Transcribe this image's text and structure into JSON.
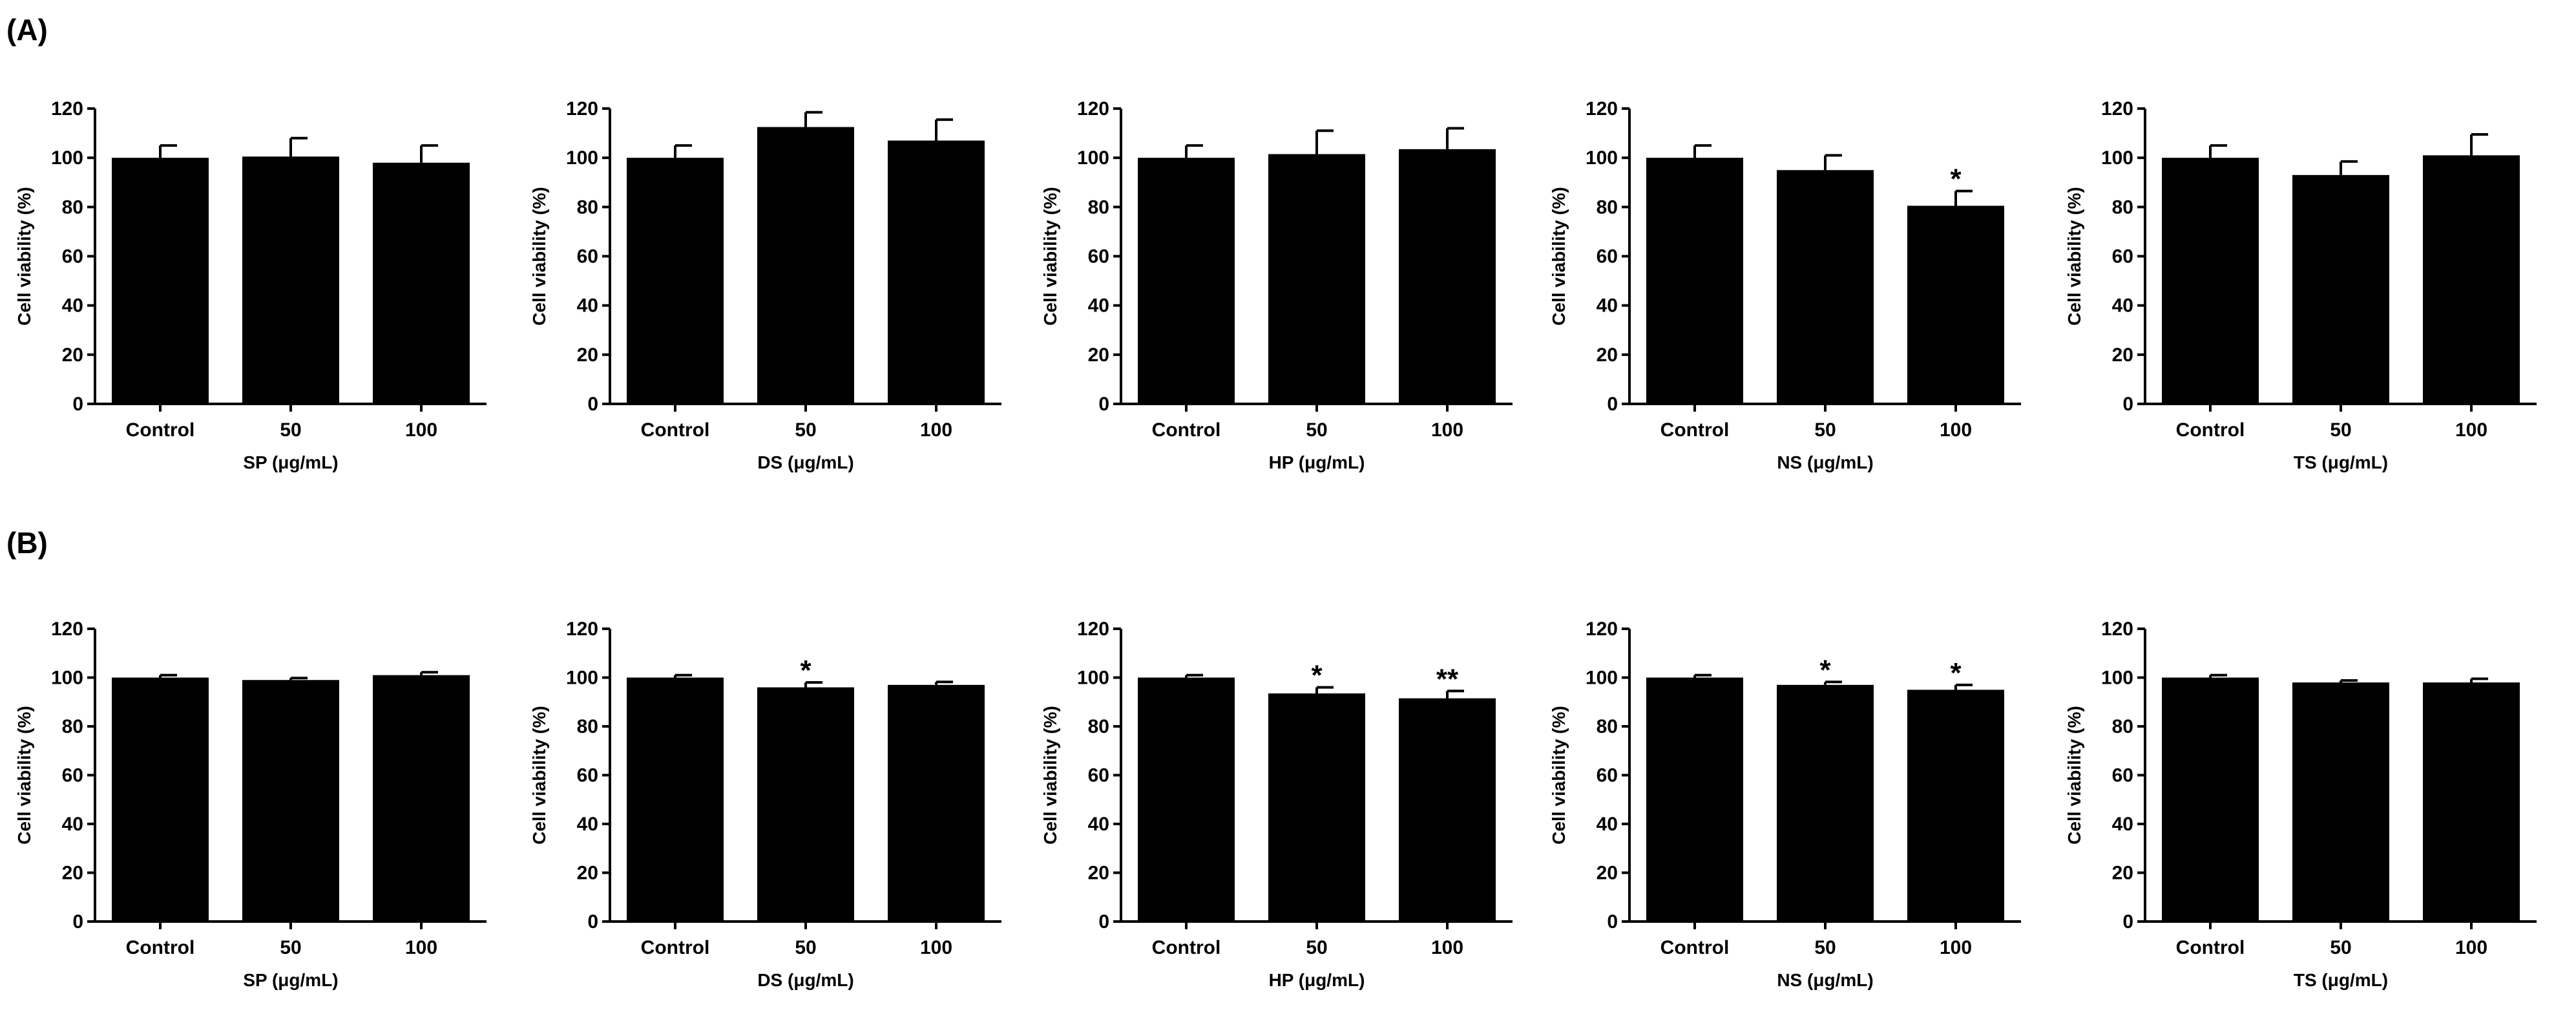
{
  "panel_labels": [
    "(A)",
    "(B)"
  ],
  "chart_data": [
    {
      "type": "bar",
      "panel": "(A)",
      "title": "",
      "xlabel": "SP (μg/mL)",
      "ylabel": "Cell viability (%)",
      "ylim": [
        0,
        120
      ],
      "yticks": [
        0,
        20,
        40,
        60,
        80,
        100,
        120
      ],
      "categories": [
        "Control",
        "50",
        "100"
      ],
      "values": [
        100,
        100.5,
        98
      ],
      "errors": [
        5,
        7.5,
        7
      ],
      "significance": [
        "",
        "",
        ""
      ],
      "color": "#000000"
    },
    {
      "type": "bar",
      "panel": "(A)",
      "title": "",
      "xlabel": "DS (μg/mL)",
      "ylabel": "Cell viability (%)",
      "ylim": [
        0,
        120
      ],
      "yticks": [
        0,
        20,
        40,
        60,
        80,
        100,
        120
      ],
      "categories": [
        "Control",
        "50",
        "100"
      ],
      "values": [
        100,
        112.5,
        107
      ],
      "errors": [
        5,
        6,
        8.5
      ],
      "significance": [
        "",
        "",
        ""
      ],
      "color": "#000000"
    },
    {
      "type": "bar",
      "panel": "(A)",
      "title": "",
      "xlabel": "HP (μg/mL)",
      "ylabel": "Cell viability (%)",
      "ylim": [
        0,
        120
      ],
      "yticks": [
        0,
        20,
        40,
        60,
        80,
        100,
        120
      ],
      "categories": [
        "Control",
        "50",
        "100"
      ],
      "values": [
        100,
        101.5,
        103.5
      ],
      "errors": [
        5,
        9.5,
        8.5
      ],
      "significance": [
        "",
        "",
        ""
      ],
      "color": "#000000"
    },
    {
      "type": "bar",
      "panel": "(A)",
      "title": "",
      "xlabel": "NS (μg/mL)",
      "ylabel": "Cell viability (%)",
      "ylim": [
        0,
        120
      ],
      "yticks": [
        0,
        20,
        40,
        60,
        80,
        100,
        120
      ],
      "categories": [
        "Control",
        "50",
        "100"
      ],
      "values": [
        100,
        95,
        80.5
      ],
      "errors": [
        5,
        6,
        6
      ],
      "significance": [
        "",
        "",
        "*"
      ],
      "color": "#000000"
    },
    {
      "type": "bar",
      "panel": "(A)",
      "title": "",
      "xlabel": "TS (μg/mL)",
      "ylabel": "Cell viability (%)",
      "ylim": [
        0,
        120
      ],
      "yticks": [
        0,
        20,
        40,
        60,
        80,
        100,
        120
      ],
      "categories": [
        "Control",
        "50",
        "100"
      ],
      "values": [
        100,
        93,
        101
      ],
      "errors": [
        5,
        5.5,
        8.5
      ],
      "significance": [
        "",
        "",
        ""
      ],
      "color": "#000000"
    },
    {
      "type": "bar",
      "panel": "(B)",
      "title": "",
      "xlabel": "SP (μg/mL)",
      "ylabel": "Cell viability (%)",
      "ylim": [
        0,
        120
      ],
      "yticks": [
        0,
        20,
        40,
        60,
        80,
        100,
        120
      ],
      "categories": [
        "Control",
        "50",
        "100"
      ],
      "values": [
        100,
        99,
        101
      ],
      "errors": [
        1,
        0.8,
        1.2
      ],
      "significance": [
        "",
        "",
        ""
      ],
      "color": "#000000"
    },
    {
      "type": "bar",
      "panel": "(B)",
      "title": "",
      "xlabel": "DS (μg/mL)",
      "ylabel": "Cell viability (%)",
      "ylim": [
        0,
        120
      ],
      "yticks": [
        0,
        20,
        40,
        60,
        80,
        100,
        120
      ],
      "categories": [
        "Control",
        "50",
        "100"
      ],
      "values": [
        100,
        96,
        97
      ],
      "errors": [
        1,
        2,
        1.2
      ],
      "significance": [
        "",
        "*",
        ""
      ],
      "color": "#000000"
    },
    {
      "type": "bar",
      "panel": "(B)",
      "title": "",
      "xlabel": "HP (μg/mL)",
      "ylabel": "Cell viability (%)",
      "ylim": [
        0,
        120
      ],
      "yticks": [
        0,
        20,
        40,
        60,
        80,
        100,
        120
      ],
      "categories": [
        "Control",
        "50",
        "100"
      ],
      "values": [
        100,
        93.5,
        91.5
      ],
      "errors": [
        1,
        2.5,
        3
      ],
      "significance": [
        "",
        "*",
        "**"
      ],
      "color": "#000000"
    },
    {
      "type": "bar",
      "panel": "(B)",
      "title": "",
      "xlabel": "NS (μg/mL)",
      "ylabel": "Cell viability (%)",
      "ylim": [
        0,
        120
      ],
      "yticks": [
        0,
        20,
        40,
        60,
        80,
        100,
        120
      ],
      "categories": [
        "Control",
        "50",
        "100"
      ],
      "values": [
        100,
        97,
        95
      ],
      "errors": [
        1,
        1.2,
        2
      ],
      "significance": [
        "",
        "*",
        "*"
      ],
      "color": "#000000"
    },
    {
      "type": "bar",
      "panel": "(B)",
      "title": "",
      "xlabel": "TS (μg/mL)",
      "ylabel": "Cell viability (%)",
      "ylim": [
        0,
        120
      ],
      "yticks": [
        0,
        20,
        40,
        60,
        80,
        100,
        120
      ],
      "categories": [
        "Control",
        "50",
        "100"
      ],
      "values": [
        100,
        98,
        98
      ],
      "errors": [
        1,
        0.8,
        1.5
      ],
      "significance": [
        "",
        "",
        ""
      ],
      "color": "#000000"
    }
  ]
}
